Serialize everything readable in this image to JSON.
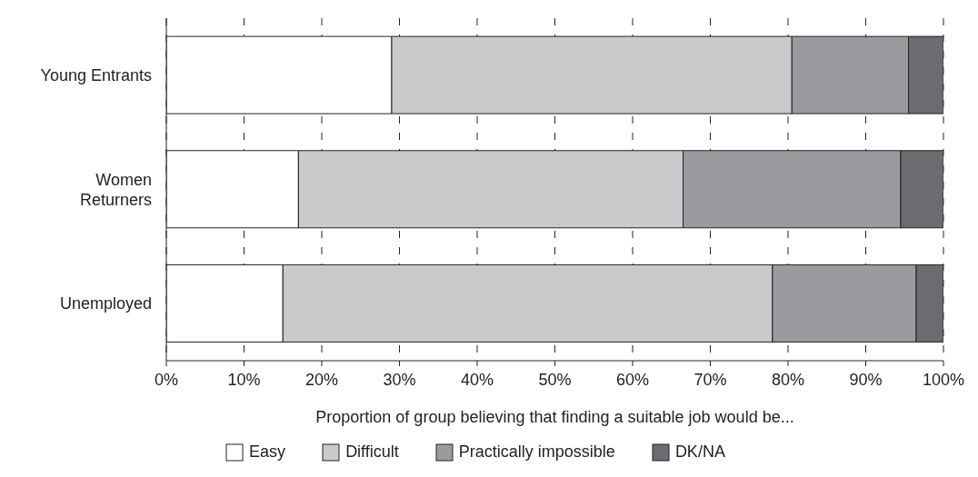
{
  "chart_data": {
    "type": "bar",
    "orientation": "horizontal",
    "stacked": true,
    "xlabel": "Proportion of group believing that finding a suitable job would be...",
    "categories": [
      "Young Entrants",
      "Women Returners",
      "Unemployed"
    ],
    "series": [
      {
        "name": "Easy",
        "color": "#ffffff",
        "values": [
          29,
          17,
          15
        ]
      },
      {
        "name": "Difficult",
        "color": "#c9cacc",
        "values": [
          51.5,
          49.5,
          63
        ]
      },
      {
        "name": "Practically impossible",
        "color": "#9a9b9f",
        "values": [
          15,
          28,
          18.5
        ]
      },
      {
        "name": "DK/NA",
        "color": "#6b6c70",
        "values": [
          4.5,
          5.5,
          3.5
        ]
      }
    ],
    "xlim": [
      0,
      100
    ],
    "xticks": [
      {
        "value": 0,
        "label": "0%"
      },
      {
        "value": 10,
        "label": "10%"
      },
      {
        "value": 20,
        "label": "20%"
      },
      {
        "value": 30,
        "label": "30%"
      },
      {
        "value": 40,
        "label": "40%"
      },
      {
        "value": 50,
        "label": "50%"
      },
      {
        "value": 60,
        "label": "60%"
      },
      {
        "value": 70,
        "label": "70%"
      },
      {
        "value": 80,
        "label": "80%"
      },
      {
        "value": 90,
        "label": "90%"
      },
      {
        "value": 100,
        "label": "100%"
      }
    ],
    "grid": "x",
    "legend": "bottom"
  }
}
